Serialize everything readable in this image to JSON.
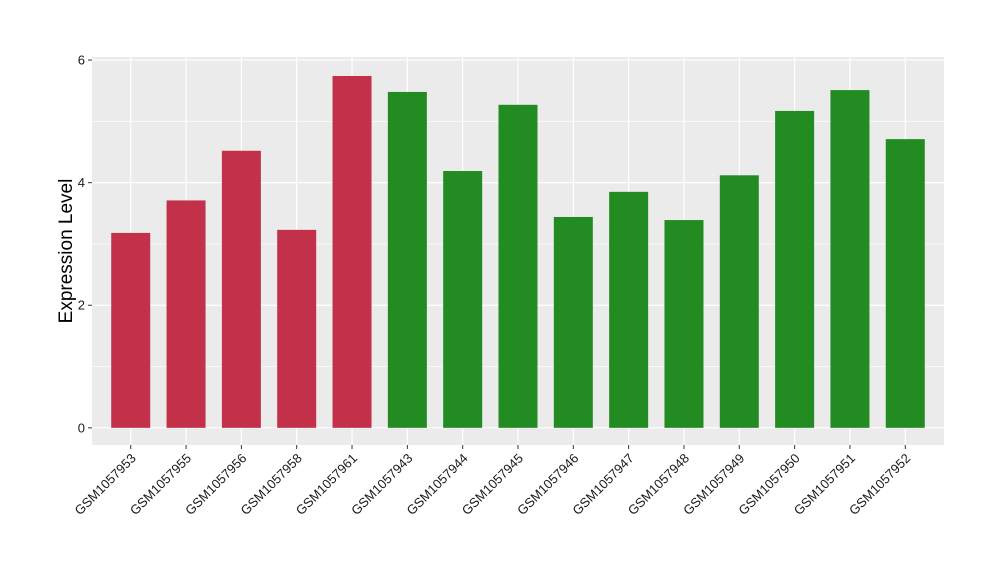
{
  "chart_data": {
    "type": "bar",
    "title": "",
    "xlabel": "",
    "ylabel": "Expression Level",
    "ylim": [
      -0.28,
      6.05
    ],
    "yticks": [
      0,
      2,
      4,
      6
    ],
    "grid": true,
    "legend": "none",
    "categories": [
      "GSM1057953",
      "GSM1057955",
      "GSM1057956",
      "GSM1057958",
      "GSM1057961",
      "GSM1057943",
      "GSM1057944",
      "GSM1057945",
      "GSM1057946",
      "GSM1057947",
      "GSM1057948",
      "GSM1057949",
      "GSM1057950",
      "GSM1057951",
      "GSM1057952"
    ],
    "values": [
      3.18,
      3.71,
      4.52,
      3.23,
      5.74,
      5.48,
      4.19,
      5.27,
      3.44,
      3.85,
      3.39,
      4.12,
      5.17,
      5.51,
      4.71
    ],
    "bar_colors": [
      "#c3304a",
      "#c3304a",
      "#c3304a",
      "#c3304a",
      "#c3304a",
      "#228b22",
      "#228b22",
      "#228b22",
      "#228b22",
      "#228b22",
      "#228b22",
      "#228b22",
      "#228b22",
      "#228b22",
      "#228b22"
    ],
    "panel_background": "#ebebeb",
    "grid_color": "#ffffff"
  }
}
